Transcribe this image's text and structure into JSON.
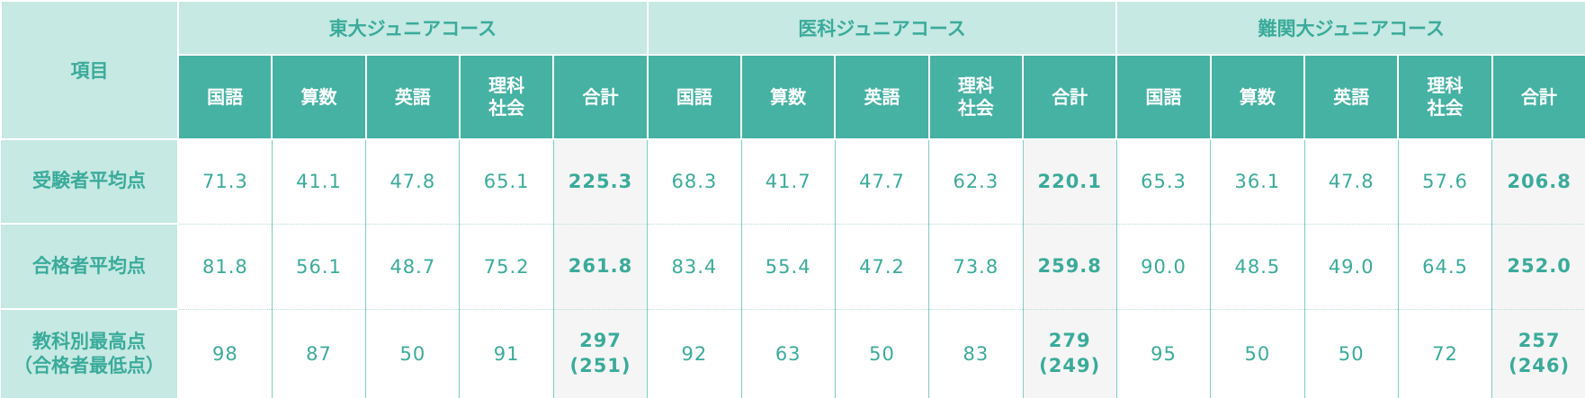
{
  "table": {
    "corner": "項目",
    "groups": [
      {
        "name": "東大ジュニアコース",
        "subjects": [
          "国語",
          "算数",
          "英語",
          "理科\n社会",
          "合計"
        ]
      },
      {
        "name": "医科ジュニアコース",
        "subjects": [
          "国語",
          "算数",
          "英語",
          "理科\n社会",
          "合計"
        ]
      },
      {
        "name": "難関大ジュニアコース",
        "subjects": [
          "国語",
          "算数",
          "英語",
          "理科\n社会",
          "合計"
        ]
      }
    ],
    "rows": [
      {
        "label": "受験者平均点",
        "cells": [
          "71.3",
          "41.1",
          "47.8",
          "65.1",
          "225.3",
          "68.3",
          "41.7",
          "47.7",
          "62.3",
          "220.1",
          "65.3",
          "36.1",
          "47.8",
          "57.6",
          "206.8"
        ]
      },
      {
        "label": "合格者平均点",
        "cells": [
          "81.8",
          "56.1",
          "48.7",
          "75.2",
          "261.8",
          "83.4",
          "55.4",
          "47.2",
          "73.8",
          "259.8",
          "90.0",
          "48.5",
          "49.0",
          "64.5",
          "252.0"
        ]
      },
      {
        "label": "教科別最高点\n（合格者最低点）",
        "cells": [
          "98",
          "87",
          "50",
          "91",
          "297\n(251)",
          "92",
          "63",
          "50",
          "83",
          "279\n(249)",
          "95",
          "50",
          "50",
          "72",
          "257\n(246)"
        ]
      }
    ]
  }
}
